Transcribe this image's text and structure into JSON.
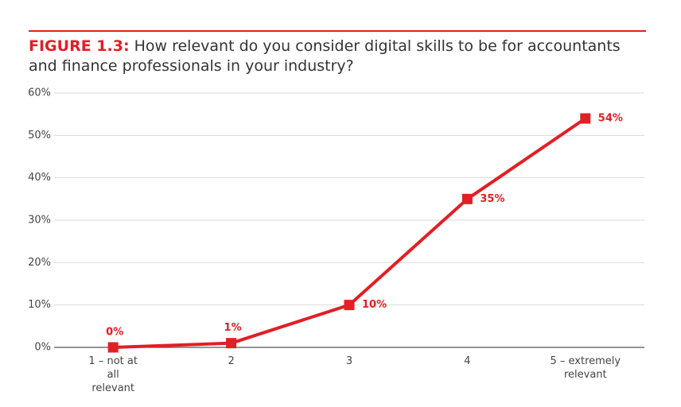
{
  "chart_data": {
    "type": "line",
    "figure_label": "FIGURE 1.3:",
    "title": "How relevant do you consider digital skills to be for accountants and finance professionals in your industry?",
    "categories": [
      "1 – not at all relevant",
      "2",
      "3",
      "4",
      "5 – extremely relevant"
    ],
    "values": [
      0,
      1,
      10,
      35,
      54
    ],
    "value_labels": [
      "0%",
      "1%",
      "10%",
      "35%",
      "54%"
    ],
    "color": "#e31e24",
    "ylim": [
      0,
      60
    ],
    "yticks": [
      {
        "value": 0,
        "label": "0%"
      },
      {
        "value": 10,
        "label": "10%"
      },
      {
        "value": 20,
        "label": "20%"
      },
      {
        "value": 30,
        "label": "30%"
      },
      {
        "value": 40,
        "label": "40%"
      },
      {
        "value": 50,
        "label": "50%"
      },
      {
        "value": 60,
        "label": "60%"
      }
    ],
    "grid": true
  }
}
